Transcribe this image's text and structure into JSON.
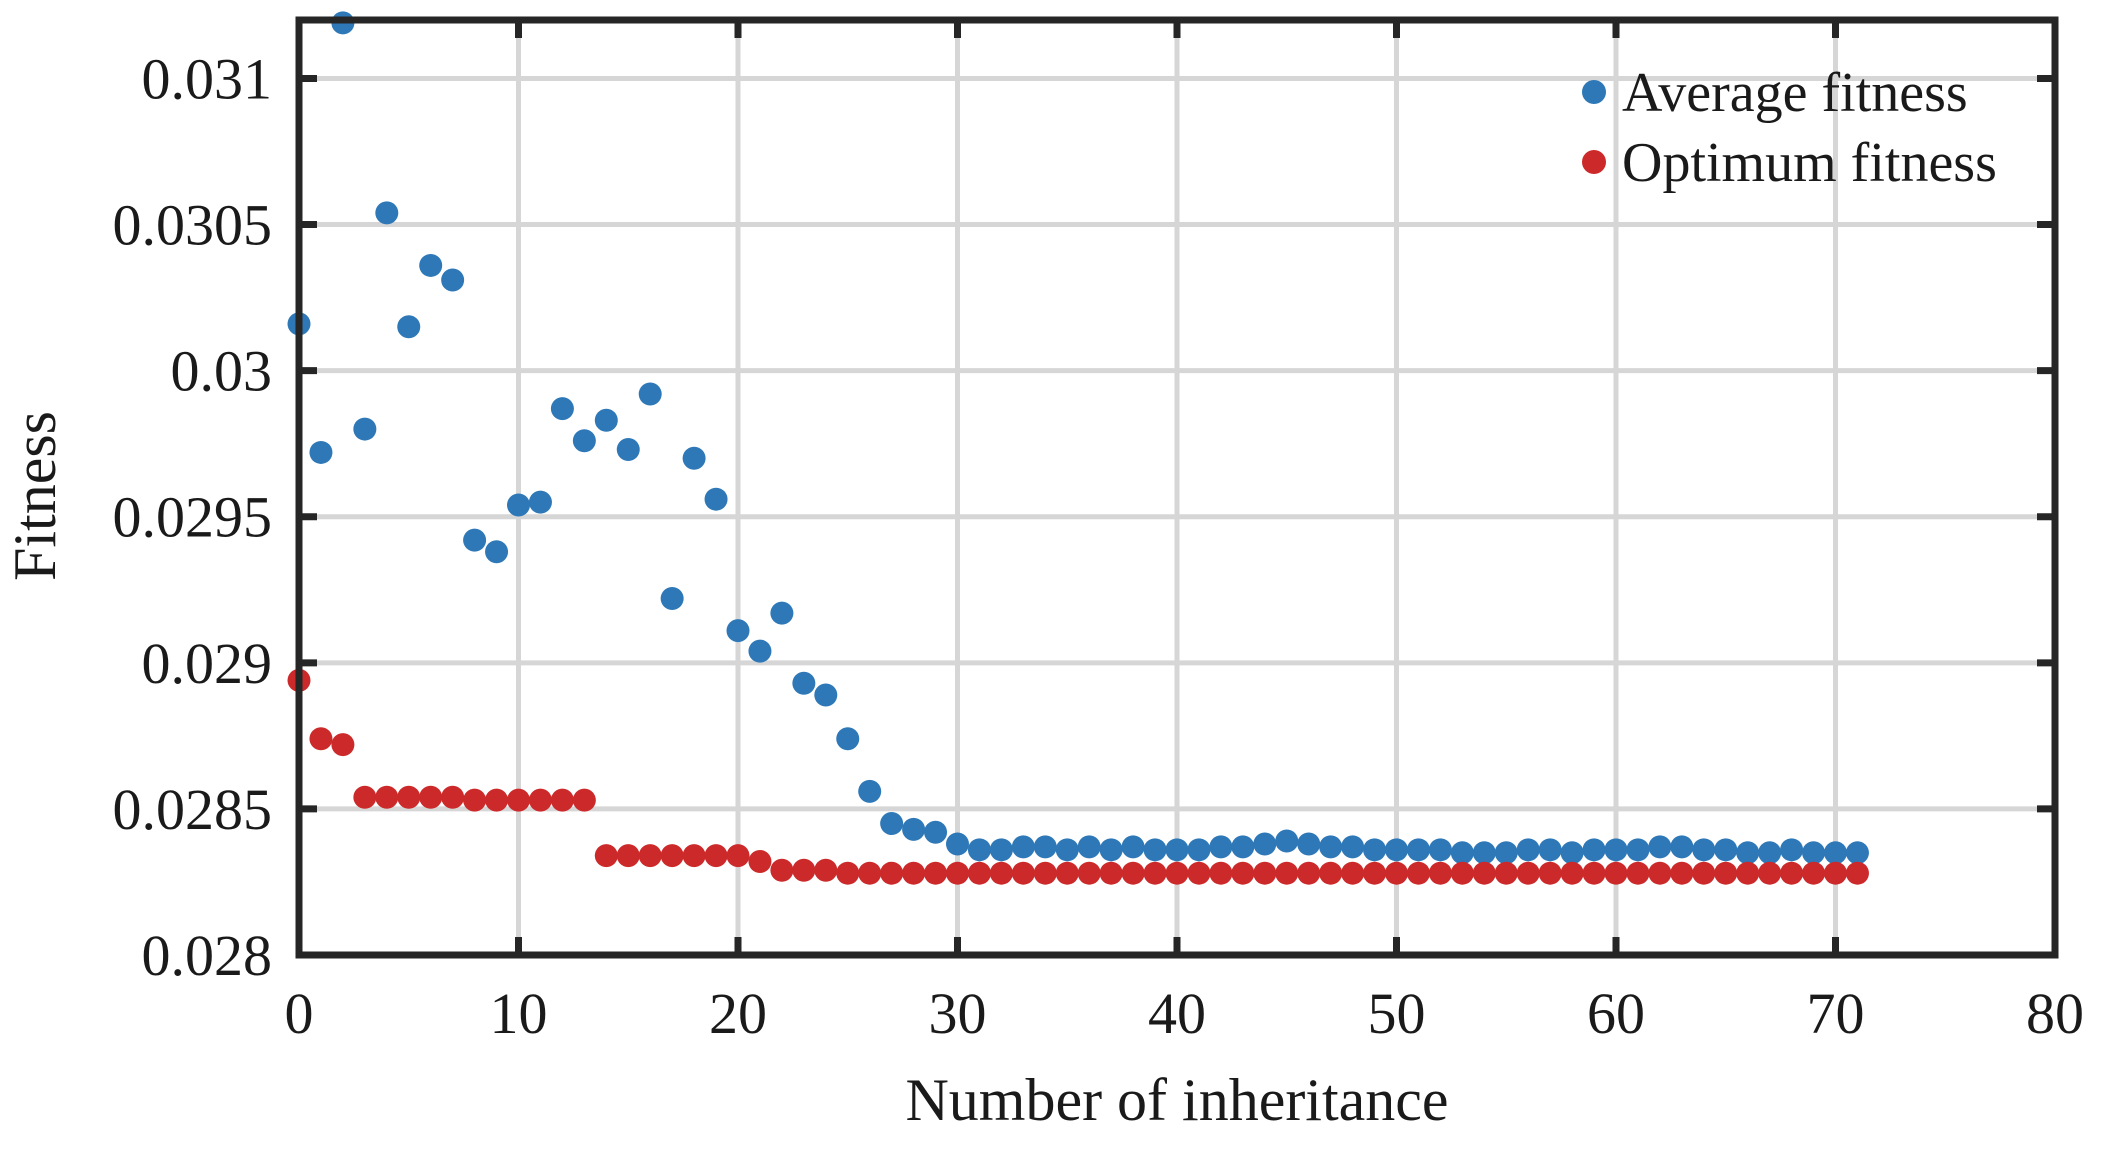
{
  "chart_data": {
    "type": "scatter",
    "title": "",
    "xlabel": "Number of inheritance",
    "ylabel": "Fitness",
    "xlim": [
      0,
      80
    ],
    "ylim": [
      0.028,
      0.0312
    ],
    "xticks": [
      0,
      10,
      20,
      30,
      40,
      50,
      60,
      70,
      80
    ],
    "xtick_labels": [
      "0",
      "10",
      "20",
      "30",
      "40",
      "50",
      "60",
      "70",
      "80"
    ],
    "yticks": [
      0.028,
      0.0285,
      0.029,
      0.0295,
      0.03,
      0.0305,
      0.031
    ],
    "ytick_labels": [
      "0.028",
      "0.0285",
      "0.029",
      "0.0295",
      "0.03",
      "0.0305",
      "0.031"
    ],
    "grid": true,
    "legend_position": "top-right",
    "x": [
      0,
      1,
      2,
      3,
      4,
      5,
      6,
      7,
      8,
      9,
      10,
      11,
      12,
      13,
      14,
      15,
      16,
      17,
      18,
      19,
      20,
      21,
      22,
      23,
      24,
      25,
      26,
      27,
      28,
      29,
      30,
      31,
      32,
      33,
      34,
      35,
      36,
      37,
      38,
      39,
      40,
      41,
      42,
      43,
      44,
      45,
      46,
      47,
      48,
      49,
      50,
      51,
      52,
      53,
      54,
      55,
      56,
      57,
      58,
      59,
      60,
      61,
      62,
      63,
      64,
      65,
      66,
      67,
      68,
      69,
      70,
      71
    ],
    "series": [
      {
        "name": "Average fitness",
        "color": "#2e78b7",
        "values": [
          0.03016,
          0.02972,
          0.03119,
          0.0298,
          0.03054,
          0.03015,
          0.03036,
          0.03031,
          0.02942,
          0.02938,
          0.02954,
          0.02955,
          0.02987,
          0.02976,
          0.02983,
          0.02973,
          0.02992,
          0.02922,
          0.0297,
          0.02956,
          0.02911,
          0.02904,
          0.02917,
          0.02893,
          0.02889,
          0.02874,
          0.02856,
          0.02845,
          0.02843,
          0.02842,
          0.02838,
          0.02836,
          0.02836,
          0.02837,
          0.02837,
          0.02836,
          0.02837,
          0.02836,
          0.02837,
          0.02836,
          0.02836,
          0.02836,
          0.02837,
          0.02837,
          0.02838,
          0.02839,
          0.02838,
          0.02837,
          0.02837,
          0.02836,
          0.02836,
          0.02836,
          0.02836,
          0.02835,
          0.02835,
          0.02835,
          0.02836,
          0.02836,
          0.02835,
          0.02836,
          0.02836,
          0.02836,
          0.02837,
          0.02837,
          0.02836,
          0.02836,
          0.02835,
          0.02835,
          0.02836,
          0.02835,
          0.02835,
          0.02835
        ]
      },
      {
        "name": "Optimum fitness",
        "color": "#cc2a2a",
        "values": [
          0.02894,
          0.02874,
          0.02872,
          0.02854,
          0.02854,
          0.02854,
          0.02854,
          0.02854,
          0.02853,
          0.02853,
          0.02853,
          0.02853,
          0.02853,
          0.02853,
          0.02834,
          0.02834,
          0.02834,
          0.02834,
          0.02834,
          0.02834,
          0.02834,
          0.02832,
          0.02829,
          0.02829,
          0.02829,
          0.02828,
          0.02828,
          0.02828,
          0.02828,
          0.02828,
          0.02828,
          0.02828,
          0.02828,
          0.02828,
          0.02828,
          0.02828,
          0.02828,
          0.02828,
          0.02828,
          0.02828,
          0.02828,
          0.02828,
          0.02828,
          0.02828,
          0.02828,
          0.02828,
          0.02828,
          0.02828,
          0.02828,
          0.02828,
          0.02828,
          0.02828,
          0.02828,
          0.02828,
          0.02828,
          0.02828,
          0.02828,
          0.02828,
          0.02828,
          0.02828,
          0.02828,
          0.02828,
          0.02828,
          0.02828,
          0.02828,
          0.02828,
          0.02828,
          0.02828,
          0.02828,
          0.02828,
          0.02828,
          0.02828
        ]
      }
    ]
  }
}
